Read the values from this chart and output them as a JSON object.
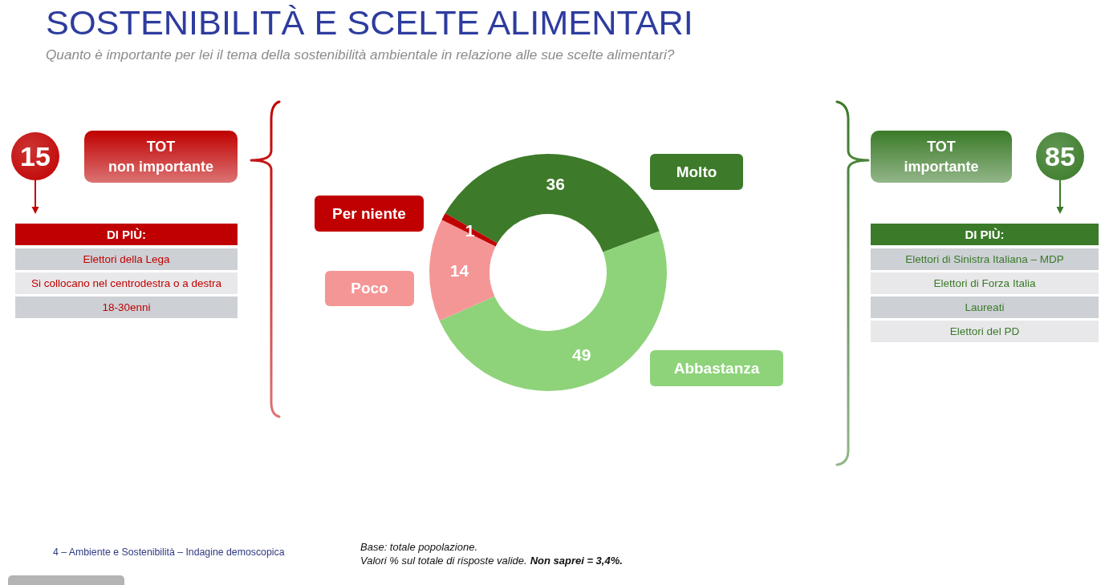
{
  "chart_data": [
    {
      "type": "donut",
      "title": "SOSTENIBILITÀ E SCELTE ALIMENTARI",
      "subtitle": "Quanto è importante per lei il tema della sostenibilità ambientale in relazione alle sue scelte alimentari?",
      "categories": [
        "Molto",
        "Abbastanza",
        "Poco",
        "Per niente"
      ],
      "values": [
        36,
        49,
        14,
        1
      ],
      "colors": [
        "#3d7a29",
        "#8ed37a",
        "#f59696",
        "#c00000"
      ],
      "data_labels": true,
      "annotations": [
        "4 – Ambiente e Sostenibilità – Indagine demoscopica",
        "Base: totale popolazione.",
        "Valori % sul totale di risposte valide.",
        "Non saprei = 3,4%."
      ]
    },
    {
      "type": "other",
      "title": "TOT\nnon importante",
      "values": [
        15
      ],
      "data_labels": true,
      "colors": [
        "#c00000"
      ],
      "subtitle": "DI PIÙ:",
      "annotations": [
        "Elettori della Lega",
        "Si collocano nel centrodestra o a destra",
        "18-30enni"
      ]
    },
    {
      "type": "other",
      "title": "TOT\nimportante",
      "values": [
        85
      ],
      "data_labels": true,
      "colors": [
        "#3a7a28"
      ],
      "subtitle": "DI PIÙ:",
      "annotations": [
        "Elettori di Sinistra Italiana – MDP",
        "Elettori di Forza Italia",
        "Laureati",
        "Elettori del PD"
      ]
    }
  ]
}
